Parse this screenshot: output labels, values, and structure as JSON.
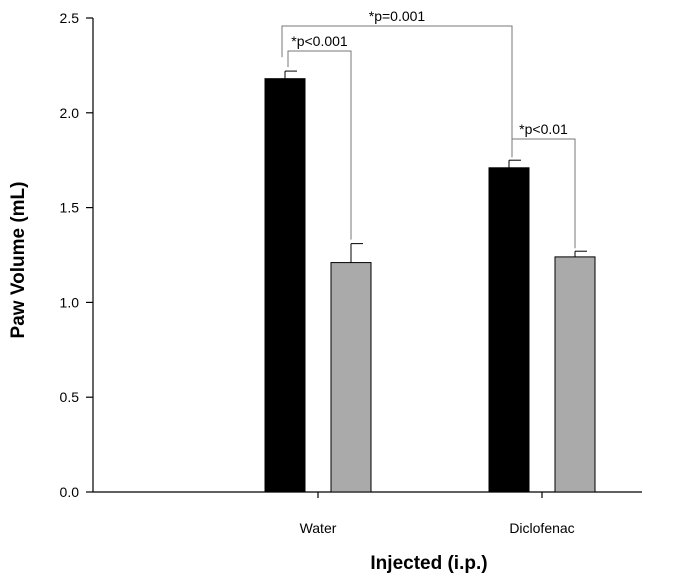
{
  "chart_data": {
    "type": "bar",
    "xlabel": "Injected (i.p.)",
    "ylabel": "Paw Volume (mL)",
    "ylim": [
      0,
      2.5
    ],
    "yticks": [
      "0.0",
      "0.5",
      "1.0",
      "1.5",
      "2.0",
      "2.5"
    ],
    "categories": [
      "Water",
      "Diclofenac"
    ],
    "series": [
      {
        "color": "#000000",
        "values": [
          2.18,
          1.71
        ],
        "errors": [
          0.04,
          0.04
        ]
      },
      {
        "color": "#aaaaaa",
        "values": [
          1.21,
          1.24
        ],
        "errors": [
          0.1,
          0.03
        ]
      }
    ],
    "annotations": [
      {
        "text": "*p=0.001"
      },
      {
        "text": "*p<0.001"
      },
      {
        "text": "*p<0.01"
      }
    ],
    "grid": false,
    "legend": "none"
  }
}
